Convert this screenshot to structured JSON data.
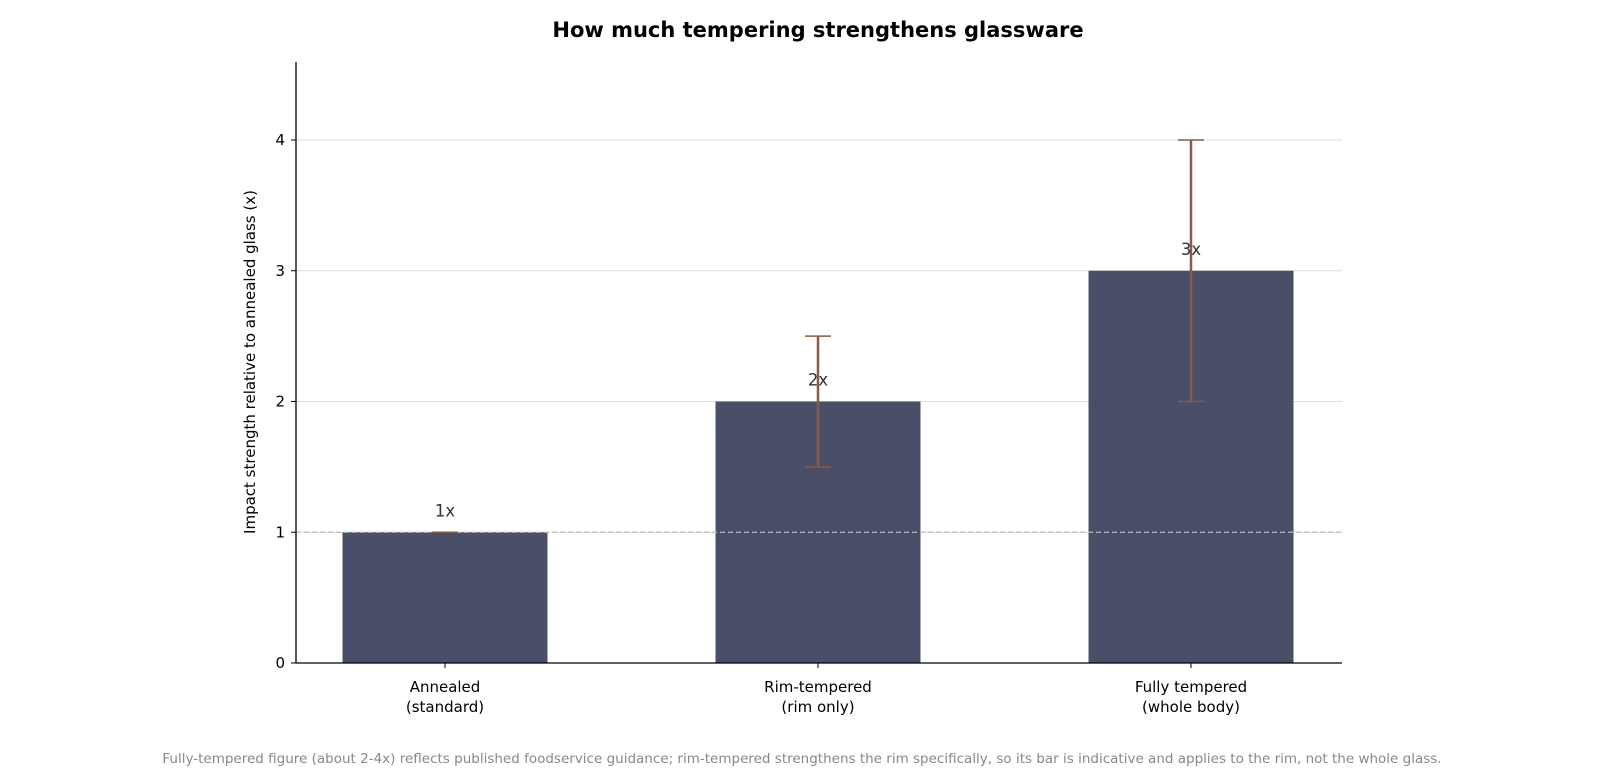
{
  "chart_data": {
    "type": "bar",
    "title": "How much tempering strengthens glassware",
    "ylabel": "Impact strength relative to annealed glass (x)",
    "xlabel": "",
    "categories": [
      [
        "Annealed",
        "(standard)"
      ],
      [
        "Rim-tempered",
        "(rim only)"
      ],
      [
        "Fully tempered",
        "(whole body)"
      ]
    ],
    "values": [
      1,
      2,
      3
    ],
    "error_low": [
      1,
      1.5,
      2
    ],
    "error_high": [
      1,
      2.5,
      4
    ],
    "data_labels": [
      "1x",
      "2x",
      "3x"
    ],
    "ylim": [
      0,
      4.6
    ],
    "yticks": [
      0,
      1,
      2,
      3,
      4
    ],
    "reference_line": 1,
    "grid": true,
    "colors": {
      "bar": "#4a4f69",
      "error": "#8b5a45",
      "grid": "#dddddd",
      "reference": "#bbbbbb"
    },
    "footnote": "Fully-tempered figure (about 2-4x) reflects published foodservice guidance; rim-tempered strengthens the rim specifically, so its bar is indicative and applies to the rim, not the whole glass."
  }
}
